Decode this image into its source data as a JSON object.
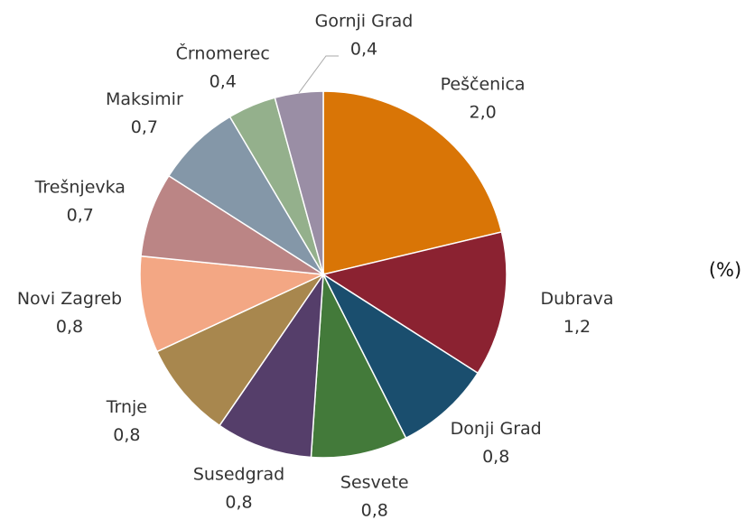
{
  "chart_data": {
    "type": "pie",
    "categories": [
      "Peščenica",
      "Dubrava",
      "Donji Grad",
      "Sesvete",
      "Susedgrad",
      "Trnje",
      "Novi Zagreb",
      "Trešnjevka",
      "Maksimir",
      "Črnomerec",
      "Gornji Grad"
    ],
    "values": [
      2.0,
      1.2,
      0.8,
      0.8,
      0.8,
      0.8,
      0.8,
      0.7,
      0.7,
      0.4,
      0.4
    ],
    "value_labels": [
      "2,0",
      "1,2",
      "0,8",
      "0,8",
      "0,8",
      "0,8",
      "0,8",
      "0,7",
      "0,7",
      "0,4",
      "0,4"
    ],
    "colors": [
      "#d97506",
      "#8b2231",
      "#1a4e6e",
      "#437a3a",
      "#553e6a",
      "#a8874e",
      "#f3a784",
      "#bb8585",
      "#8497a8",
      "#94b08c",
      "#9a8ea5"
    ],
    "annotation": "(%)"
  }
}
